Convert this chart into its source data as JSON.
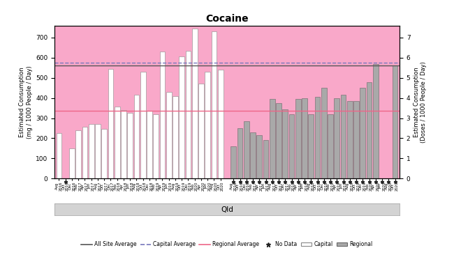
{
  "title": "Cocaine",
  "ylabel_left": "Estimated Consumption\n(mg / 1000 People / Day)",
  "ylabel_right": "Estimated Consumption\n(Doses / 1000 People / Day)",
  "xlabel": "Qld",
  "background_color": "#F9A8C9",
  "capital_color": "#FFFFFF",
  "regional_color": "#A9A9A9",
  "all_site_avg": 560,
  "capital_avg": 575,
  "regional_avg": 335,
  "ylim_left": [
    0,
    760
  ],
  "ylim_right": [
    0,
    7.6
  ],
  "capital_labels": [
    "Aug 2016",
    "Oct 2016",
    "Dec 2016",
    "Feb 2017",
    "Apr 2017",
    "Jun 2017",
    "Aug 2017",
    "Oct 2017",
    "Dec 2017",
    "Feb 2018",
    "Apr 2018",
    "Jun 2018",
    "Aug 2018",
    "Oct 2018",
    "Dec 2018",
    "Feb 2019",
    "Apr 2019",
    "Jun 2019",
    "Aug 2019",
    "Oct 2019",
    "Dec 2019",
    "Feb 2020",
    "Apr 2020",
    "Jun 2020",
    "Aug 2020",
    "Oct 2020"
  ],
  "capital_values": [
    225,
    0,
    148,
    240,
    258,
    270,
    270,
    248,
    545,
    358,
    340,
    325,
    415,
    530,
    335,
    320,
    630,
    430,
    410,
    605,
    635,
    745,
    470,
    530,
    730,
    540
  ],
  "capital_no_data": [
    0,
    1,
    0,
    0,
    0,
    0,
    0,
    0,
    0,
    0,
    0,
    0,
    0,
    0,
    0,
    0,
    0,
    0,
    0,
    0,
    0,
    0,
    0,
    0,
    0,
    0
  ],
  "regional_labels": [
    "Aug 2016",
    "Oct 2016",
    "Dec 2016",
    "Feb 2017",
    "Apr 2017",
    "Jun 2017",
    "Aug 2017",
    "Oct 2017",
    "Dec 2017",
    "Feb 2018",
    "Apr 2018",
    "Jun 2018",
    "Aug 2018",
    "Oct 2018",
    "Dec 2018",
    "Feb 2019",
    "Apr 2019",
    "Jun 2019",
    "Aug 2019",
    "Oct 2019",
    "Dec 2019",
    "Feb 2020",
    "Apr 2020",
    "Jun 2020",
    "Aug 2020",
    "Oct 2020"
  ],
  "regional_values": [
    160,
    250,
    285,
    230,
    215,
    190,
    395,
    375,
    345,
    320,
    395,
    400,
    320,
    405,
    450,
    320,
    400,
    415,
    385,
    385,
    450,
    480,
    570,
    0,
    0,
    560
  ],
  "regional_no_data": [
    1,
    1,
    1,
    1,
    1,
    1,
    1,
    1,
    1,
    1,
    1,
    1,
    1,
    1,
    1,
    1,
    1,
    1,
    1,
    1,
    1,
    1,
    1,
    1,
    1,
    1
  ]
}
